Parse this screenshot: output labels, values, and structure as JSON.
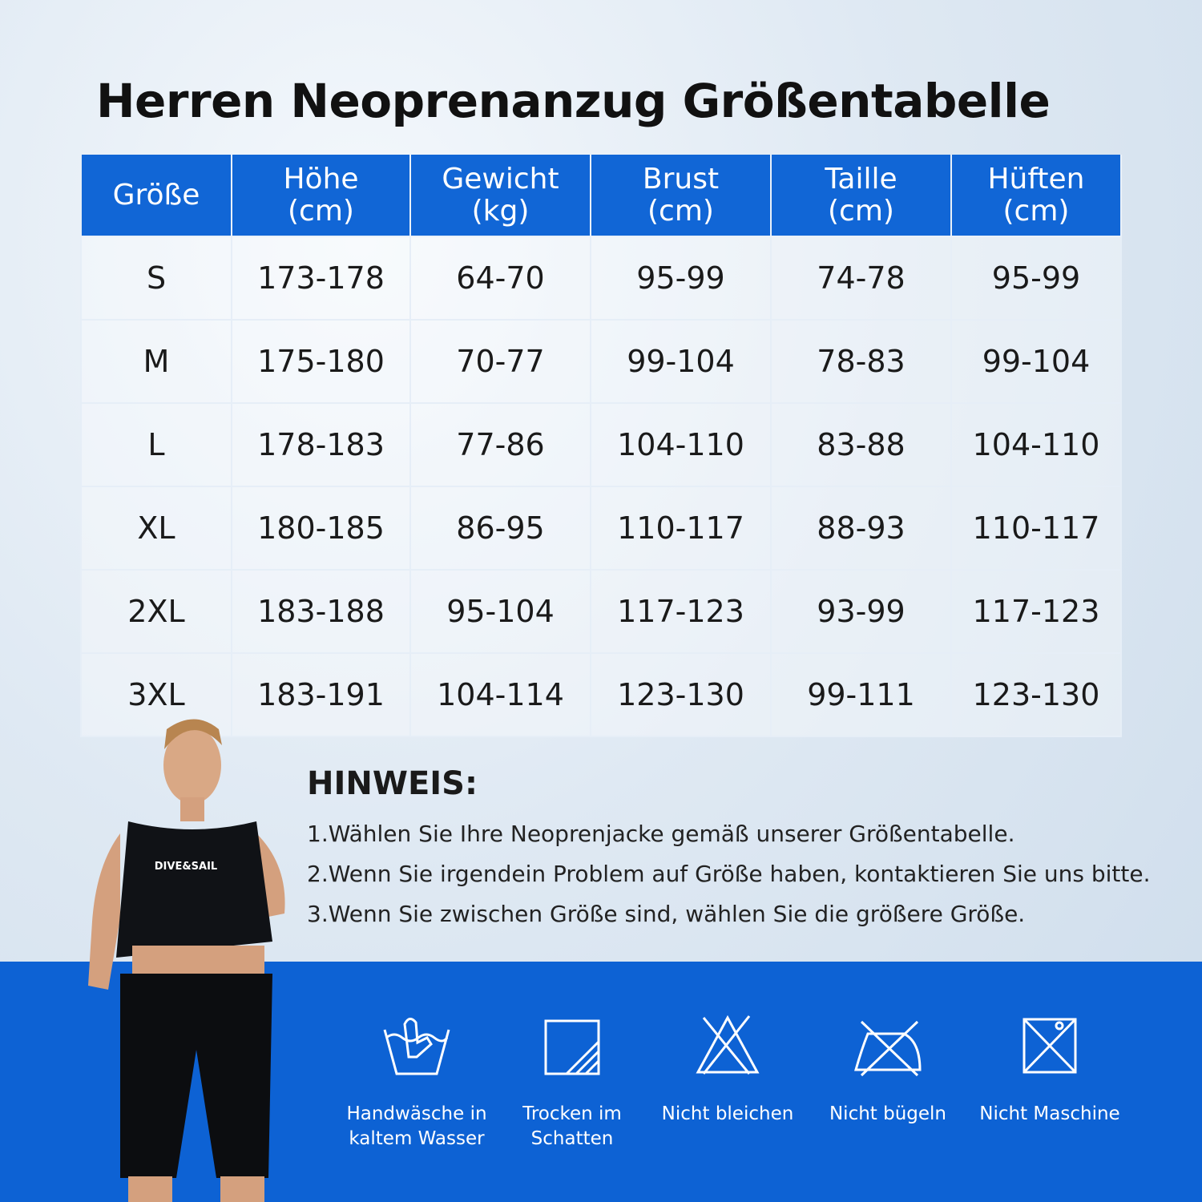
{
  "header": {
    "title": "Herren Neoprenanzug Größentabelle"
  },
  "table": {
    "columns": [
      "Größe",
      "Höhe\n(cm)",
      "Gewicht\n(kg)",
      "Brust\n(cm)",
      "Taille\n(cm)",
      "Hüften\n(cm)"
    ],
    "rows": [
      [
        "S",
        "173-178",
        "64-70",
        "95-99",
        "74-78",
        "95-99"
      ],
      [
        "M",
        "175-180",
        "70-77",
        "99-104",
        "78-83",
        "99-104"
      ],
      [
        "L",
        "178-183",
        "77-86",
        "104-110",
        "83-88",
        "104-110"
      ],
      [
        "XL",
        "180-185",
        "86-95",
        "110-117",
        "88-93",
        "110-117"
      ],
      [
        "2XL",
        "183-188",
        "95-104",
        "117-123",
        "93-99",
        "117-123"
      ],
      [
        "3XL",
        "183-191",
        "104-114",
        "123-130",
        "99-111",
        "123-130"
      ]
    ]
  },
  "notes": {
    "heading": "HINWEIS:",
    "items": [
      "1.Wählen Sie Ihre Neoprenjacke gemäß unserer Größentabelle.",
      "2.Wenn Sie irgendein Problem auf Größe haben, kontaktieren Sie uns bitte.",
      "3.Wenn Sie zwischen Größe sind, wählen Sie die größere Größe."
    ]
  },
  "care": [
    "Handwäsche in\nkaltem Wasser",
    "Trocken im\nSchatten",
    "Nicht bleichen",
    "Nicht bügeln",
    "Nicht Maschine"
  ],
  "brand": "DIVE&SAIL"
}
